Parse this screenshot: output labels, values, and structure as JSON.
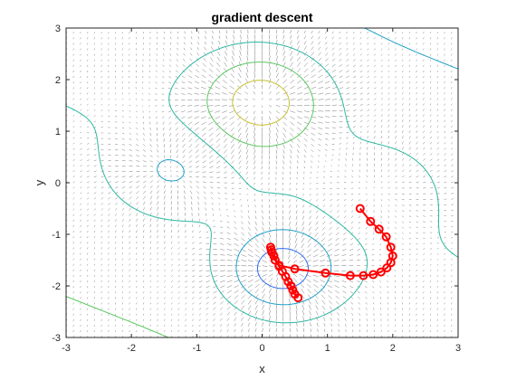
{
  "chart_data": {
    "type": "line",
    "title": "gradient descent",
    "xlabel": "x",
    "ylabel": "y",
    "xlim": [
      -3,
      3
    ],
    "ylim": [
      -3,
      3
    ],
    "xticks": [
      "-3",
      "-2",
      "-1",
      "0",
      "1",
      "2",
      "3"
    ],
    "yticks": [
      "-3",
      "-2",
      "-1",
      "0",
      "1",
      "2",
      "3"
    ],
    "grid": false,
    "box": true,
    "contour_levels": [
      -6,
      -4,
      -2,
      0,
      2,
      4,
      6
    ],
    "level_colors": [
      "#3d26a8",
      "#2e6cf2",
      "#1fa0c9",
      "#2cb7a0",
      "#5cc862",
      "#c9bf2f",
      "#f5dc1e"
    ],
    "quiver_color": "#000000",
    "series": [
      {
        "style": "red line with circle markers",
        "color": "#ff0000",
        "points": [
          [
            1.5,
            -0.5
          ],
          [
            1.66,
            -0.75
          ],
          [
            1.79,
            -0.9
          ],
          [
            1.9,
            -1.05
          ],
          [
            1.97,
            -1.25
          ],
          [
            2.0,
            -1.42
          ],
          [
            1.97,
            -1.55
          ],
          [
            1.91,
            -1.65
          ],
          [
            1.82,
            -1.73
          ],
          [
            1.7,
            -1.78
          ],
          [
            1.55,
            -1.8
          ],
          [
            1.35,
            -1.8
          ],
          [
            0.97,
            -1.75
          ],
          [
            0.5,
            -1.67
          ],
          [
            0.26,
            -1.6
          ],
          [
            0.18,
            -1.42
          ],
          [
            0.14,
            -1.3
          ],
          [
            0.13,
            -1.25
          ],
          [
            0.15,
            -1.35
          ],
          [
            0.2,
            -1.5
          ],
          [
            0.26,
            -1.62
          ],
          [
            0.31,
            -1.72
          ],
          [
            0.36,
            -1.82
          ],
          [
            0.4,
            -1.92
          ],
          [
            0.44,
            -2.0
          ],
          [
            0.47,
            -2.08
          ],
          [
            0.5,
            -2.16
          ],
          [
            0.55,
            -2.23
          ]
        ]
      }
    ]
  }
}
